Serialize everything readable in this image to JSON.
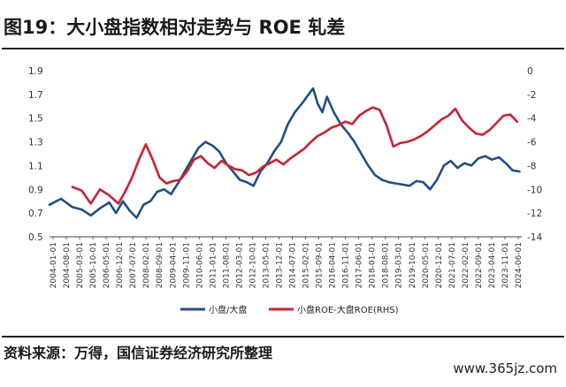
{
  "title": "图19：大小盘指数相对走势与 ROE 轧差",
  "source": "资料来源：万得，国信证券经济研究所整理",
  "watermark": "www.365jz.com",
  "chart_data": {
    "type": "line",
    "left_axis": {
      "ticks": [
        "0.5",
        "0.7",
        "0.9",
        "1.1",
        "1.3",
        "1.5",
        "1.7",
        "1.9"
      ],
      "ylim": [
        0.5,
        1.9
      ]
    },
    "right_axis": {
      "ticks": [
        "-14",
        "-12",
        "-10",
        "-8",
        "-6",
        "-4",
        "-2",
        "0"
      ],
      "ylim": [
        -14,
        0
      ]
    },
    "x_ticks": [
      "2004-01-01",
      "2004-08-01",
      "2005-03-01",
      "2005-10-01",
      "2006-05-01",
      "2006-12-01",
      "2007-07-01",
      "2008-02-01",
      "2008-09-01",
      "2009-04-01",
      "2009-11-01",
      "2010-06-01",
      "2011-01-01",
      "2011-08-01",
      "2012-03-01",
      "2012-10-01",
      "2013-05-01",
      "2013-12-01",
      "2014-07-01",
      "2015-02-01",
      "2015-09-01",
      "2016-04-01",
      "2016-11-01",
      "2017-06-01",
      "2018-01-01",
      "2018-08-01",
      "2019-03-01",
      "2019-10-01",
      "2020-05-01",
      "2020-12-01",
      "2021-07-01",
      "2022-02-01",
      "2022-09-01",
      "2023-04-01",
      "2023-11-01",
      "2024-06-01"
    ],
    "legend": "bottom-center",
    "grid": false,
    "series": [
      {
        "name": "小盘/大盘",
        "axis": "left",
        "color": "#1f4e8c",
        "x": [
          2004.0,
          2004.5,
          2005.0,
          2005.4,
          2005.8,
          2006.2,
          2006.6,
          2006.9,
          2007.2,
          2007.5,
          2007.8,
          2008.1,
          2008.4,
          2008.7,
          2009.0,
          2009.3,
          2009.6,
          2009.9,
          2010.2,
          2010.5,
          2010.8,
          2011.1,
          2011.4,
          2011.7,
          2012.0,
          2012.3,
          2012.6,
          2012.9,
          2013.2,
          2013.5,
          2013.8,
          2014.1,
          2014.4,
          2014.7,
          2015.0,
          2015.3,
          2015.5,
          2015.7,
          2015.9,
          2016.1,
          2016.4,
          2016.7,
          2017.0,
          2017.3,
          2017.6,
          2017.9,
          2018.2,
          2018.5,
          2018.8,
          2019.1,
          2019.4,
          2019.7,
          2020.0,
          2020.3,
          2020.6,
          2020.9,
          2021.2,
          2021.5,
          2021.8,
          2022.1,
          2022.4,
          2022.7,
          2023.0,
          2023.3,
          2023.6,
          2023.9,
          2024.2,
          2024.5
        ],
        "values": [
          0.77,
          0.82,
          0.75,
          0.73,
          0.68,
          0.74,
          0.79,
          0.7,
          0.8,
          0.72,
          0.66,
          0.77,
          0.8,
          0.88,
          0.9,
          0.86,
          0.95,
          1.05,
          1.15,
          1.25,
          1.3,
          1.27,
          1.22,
          1.12,
          1.05,
          0.98,
          0.96,
          0.93,
          1.05,
          1.12,
          1.22,
          1.3,
          1.45,
          1.55,
          1.62,
          1.7,
          1.75,
          1.62,
          1.55,
          1.68,
          1.55,
          1.45,
          1.38,
          1.3,
          1.2,
          1.1,
          1.02,
          0.98,
          0.96,
          0.95,
          0.94,
          0.93,
          0.97,
          0.96,
          0.9,
          0.98,
          1.1,
          1.14,
          1.08,
          1.12,
          1.1,
          1.16,
          1.18,
          1.15,
          1.17,
          1.12,
          1.06,
          1.05
        ]
      },
      {
        "name": "小盘ROE-大盘ROE(RHS)",
        "axis": "right",
        "color": "#d11f2e",
        "x": [
          2005.0,
          2005.4,
          2005.8,
          2006.2,
          2006.6,
          2007.0,
          2007.3,
          2007.6,
          2007.9,
          2008.2,
          2008.5,
          2008.8,
          2009.1,
          2009.4,
          2009.7,
          2010.0,
          2010.3,
          2010.6,
          2010.9,
          2011.2,
          2011.5,
          2011.8,
          2012.1,
          2012.4,
          2012.7,
          2013.0,
          2013.3,
          2013.6,
          2013.9,
          2014.2,
          2014.5,
          2014.8,
          2015.1,
          2015.4,
          2015.7,
          2016.0,
          2016.3,
          2016.6,
          2016.9,
          2017.2,
          2017.5,
          2017.8,
          2018.1,
          2018.4,
          2018.7,
          2019.0,
          2019.3,
          2019.6,
          2019.9,
          2020.2,
          2020.5,
          2020.8,
          2021.1,
          2021.4,
          2021.7,
          2022.0,
          2022.3,
          2022.6,
          2022.9,
          2023.2,
          2023.5,
          2023.8,
          2024.1,
          2024.4
        ],
        "values": [
          -9.8,
          -10.1,
          -11.2,
          -10.0,
          -10.5,
          -11.2,
          -10.2,
          -9.0,
          -7.5,
          -6.2,
          -7.5,
          -9.0,
          -9.5,
          -9.3,
          -9.2,
          -8.5,
          -7.5,
          -7.2,
          -7.8,
          -8.2,
          -7.6,
          -8.0,
          -8.3,
          -8.4,
          -8.8,
          -8.6,
          -8.1,
          -7.8,
          -7.5,
          -7.9,
          -7.4,
          -7.0,
          -6.6,
          -6.0,
          -5.5,
          -5.2,
          -4.8,
          -4.6,
          -4.3,
          -4.5,
          -3.8,
          -3.4,
          -3.1,
          -3.3,
          -4.6,
          -6.4,
          -6.1,
          -6.0,
          -5.8,
          -5.5,
          -5.1,
          -4.6,
          -4.1,
          -3.8,
          -3.2,
          -4.2,
          -4.8,
          -5.3,
          -5.4,
          -5.0,
          -4.4,
          -3.8,
          -3.7,
          -4.3
        ]
      }
    ]
  }
}
